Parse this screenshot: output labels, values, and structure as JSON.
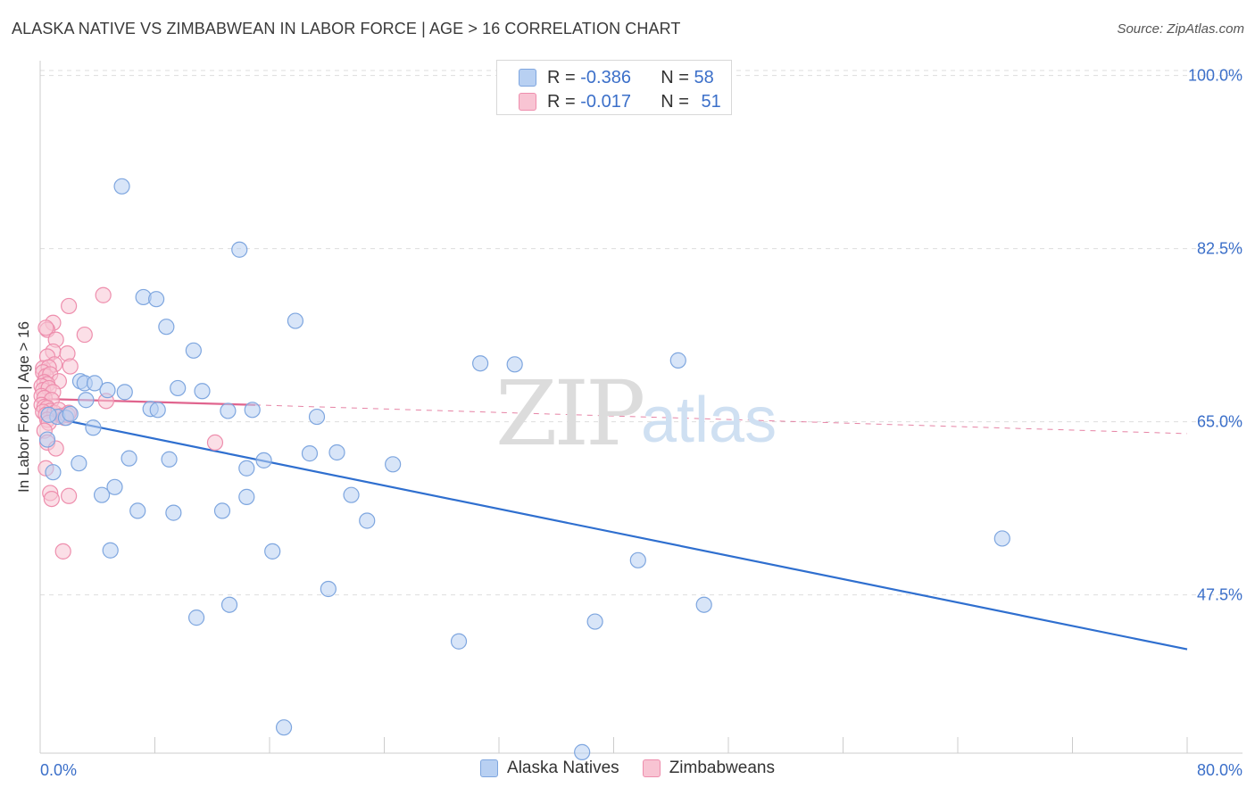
{
  "title": "ALASKA NATIVE VS ZIMBABWEAN IN LABOR FORCE | AGE > 16 CORRELATION CHART",
  "source": "Source: ZipAtlas.com",
  "watermark": {
    "zip": "ZIP",
    "atlas": "atlas"
  },
  "legend_top": [
    {
      "r_label": "R = ",
      "r_value": "-0.386",
      "n_label": "N = ",
      "n_value": "58"
    },
    {
      "r_label": "R = ",
      "r_value": "-0.017",
      "n_label": "N = ",
      "n_value": "51"
    }
  ],
  "colors": {
    "blue_fill": "#b8d0f2",
    "blue_stroke": "#7ea6df",
    "blue_line": "#2f6fcf",
    "pink_fill": "#f8c4d3",
    "pink_stroke": "#ee8ead",
    "pink_line": "#e0648e",
    "tick_label": "#3b6fc9",
    "grid": "#dddddd"
  },
  "chart_data": {
    "type": "scatter",
    "title": "ALASKA NATIVE VS ZIMBABWEAN IN LABOR FORCE | AGE > 16 CORRELATION CHART",
    "xlabel": "",
    "ylabel": "In Labor Force | Age > 16",
    "xlim": [
      0,
      80
    ],
    "ylim": [
      31.5,
      101.5
    ],
    "x_tick_labels": [
      {
        "value": 0,
        "label": "0.0%"
      },
      {
        "value": 80,
        "label": "80.0%"
      }
    ],
    "y_tick_labels": [
      {
        "value": 100,
        "label": "100.0%"
      },
      {
        "value": 82.5,
        "label": "82.5%"
      },
      {
        "value": 65,
        "label": "65.0%"
      },
      {
        "value": 47.5,
        "label": "47.5%"
      }
    ],
    "grid": true,
    "legend_position": "bottom",
    "series": [
      {
        "name": "Alaska Natives",
        "color": "#7ea6df",
        "r": -0.386,
        "n": 58,
        "trend": {
          "x": [
            0.5,
            80
          ],
          "y": [
            65.5,
            42.0
          ]
        },
        "points": [
          [
            5.7,
            88.8
          ],
          [
            13.9,
            82.4
          ],
          [
            7.2,
            77.6
          ],
          [
            8.1,
            77.4
          ],
          [
            17.8,
            75.2
          ],
          [
            8.8,
            74.6
          ],
          [
            10.7,
            72.2
          ],
          [
            30.7,
            70.9
          ],
          [
            33.1,
            70.8
          ],
          [
            44.5,
            71.2
          ],
          [
            2.8,
            69.1
          ],
          [
            3.1,
            68.9
          ],
          [
            3.8,
            68.9
          ],
          [
            4.7,
            68.2
          ],
          [
            5.9,
            68.0
          ],
          [
            9.6,
            68.4
          ],
          [
            11.3,
            68.1
          ],
          [
            3.2,
            67.2
          ],
          [
            7.7,
            66.3
          ],
          [
            8.2,
            66.2
          ],
          [
            13.1,
            66.1
          ],
          [
            14.8,
            66.2
          ],
          [
            19.3,
            65.5
          ],
          [
            1.2,
            65.5
          ],
          [
            1.8,
            65.4
          ],
          [
            3.7,
            64.4
          ],
          [
            0.5,
            63.2
          ],
          [
            18.8,
            61.8
          ],
          [
            20.7,
            61.9
          ],
          [
            6.2,
            61.3
          ],
          [
            9.0,
            61.2
          ],
          [
            15.6,
            61.1
          ],
          [
            2.7,
            60.8
          ],
          [
            24.6,
            60.7
          ],
          [
            14.4,
            60.3
          ],
          [
            0.9,
            59.9
          ],
          [
            4.3,
            57.6
          ],
          [
            5.2,
            58.4
          ],
          [
            14.4,
            57.4
          ],
          [
            21.7,
            57.6
          ],
          [
            6.8,
            56.0
          ],
          [
            9.3,
            55.8
          ],
          [
            12.7,
            56.0
          ],
          [
            22.8,
            55.0
          ],
          [
            67.1,
            53.2
          ],
          [
            4.9,
            52.0
          ],
          [
            16.2,
            51.9
          ],
          [
            41.7,
            51.0
          ],
          [
            20.1,
            48.1
          ],
          [
            13.2,
            46.5
          ],
          [
            46.3,
            46.5
          ],
          [
            10.9,
            45.2
          ],
          [
            38.7,
            44.8
          ],
          [
            29.2,
            42.8
          ],
          [
            17.0,
            34.1
          ],
          [
            37.8,
            31.6
          ],
          [
            0.6,
            65.7
          ],
          [
            2.1,
            65.8
          ]
        ]
      },
      {
        "name": "Zimbabweans",
        "color": "#ee8ead",
        "r": -0.017,
        "n": 51,
        "trend": {
          "x": [
            0.5,
            15.0
          ],
          "y": [
            67.3,
            66.7
          ]
        },
        "trend_ext": {
          "x": [
            15.0,
            80
          ],
          "y": [
            66.7,
            63.8
          ]
        },
        "points": [
          [
            4.4,
            77.8
          ],
          [
            2.0,
            76.7
          ],
          [
            0.9,
            75.0
          ],
          [
            0.5,
            74.3
          ],
          [
            0.4,
            74.5
          ],
          [
            3.1,
            73.8
          ],
          [
            1.1,
            73.3
          ],
          [
            0.9,
            72.1
          ],
          [
            1.9,
            71.9
          ],
          [
            0.5,
            71.6
          ],
          [
            1.0,
            70.8
          ],
          [
            0.2,
            70.4
          ],
          [
            0.6,
            70.5
          ],
          [
            2.1,
            70.6
          ],
          [
            0.2,
            70.0
          ],
          [
            0.4,
            69.6
          ],
          [
            0.7,
            69.8
          ],
          [
            1.3,
            69.1
          ],
          [
            0.3,
            69.0
          ],
          [
            0.5,
            68.8
          ],
          [
            0.1,
            68.6
          ],
          [
            0.2,
            68.2
          ],
          [
            0.6,
            68.4
          ],
          [
            0.9,
            68.0
          ],
          [
            0.1,
            67.6
          ],
          [
            0.3,
            67.4
          ],
          [
            0.8,
            67.2
          ],
          [
            4.6,
            67.1
          ],
          [
            0.1,
            66.7
          ],
          [
            0.3,
            66.5
          ],
          [
            0.5,
            66.4
          ],
          [
            0.7,
            66.1
          ],
          [
            0.2,
            66.0
          ],
          [
            0.4,
            65.7
          ],
          [
            1.0,
            65.9
          ],
          [
            1.3,
            66.2
          ],
          [
            1.5,
            65.6
          ],
          [
            1.7,
            65.4
          ],
          [
            1.9,
            65.7
          ],
          [
            2.0,
            65.9
          ],
          [
            0.5,
            65.2
          ],
          [
            0.6,
            64.9
          ],
          [
            0.3,
            64.1
          ],
          [
            12.2,
            62.9
          ],
          [
            0.5,
            62.9
          ],
          [
            1.1,
            62.3
          ],
          [
            0.4,
            60.3
          ],
          [
            0.7,
            57.8
          ],
          [
            2.0,
            57.5
          ],
          [
            0.8,
            57.2
          ],
          [
            1.6,
            51.9
          ]
        ]
      }
    ]
  }
}
